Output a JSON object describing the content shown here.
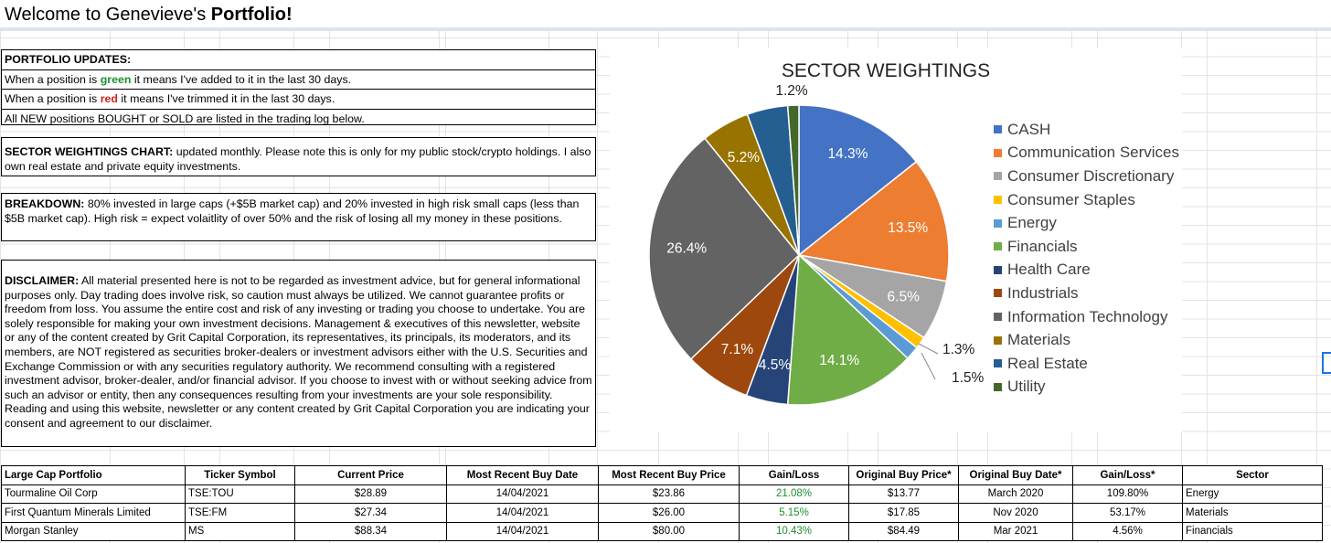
{
  "title_prefix": "Welcome to Genevieve's ",
  "title_bold": "Portfolio!",
  "updates": {
    "heading": "PORTFOLIO UPDATES:",
    "line1_a": "When a position is ",
    "line1_color": "green",
    "line1_b": " it means I've added to it in the last 30 days.",
    "line2_a": "When a position is ",
    "line2_color": "red",
    "line2_b": " it means I've trimmed it in the last 30 days.",
    "line3": "All NEW positions BOUGHT or SOLD are listed in the trading log below."
  },
  "sector_note": {
    "label": "SECTOR WEIGHTINGS CHART:",
    "text": " updated monthly. Please note this is only for my public stock/crypto holdings. I also own real estate and private equity investments."
  },
  "breakdown": {
    "label": "BREAKDOWN:",
    "text": " 80% invested in large caps (+$5B market cap) and 20% invested in high risk small caps (less than $5B market cap). High risk = expect volaitlity of over 50% and the risk of losing all my money in these positions."
  },
  "disclaimer": {
    "label": "DISCLAIMER:",
    "text": " All material presented here is not to be regarded as investment advice, but for general informational purposes only. Day trading does involve risk, so caution must always be utilized. We cannot guarantee profits or freedom from loss. You assume the entire cost and risk of any investing or trading you choose to undertake. You are solely responsible for making your own investment decisions. Management & executives of this newsletter, website or any of the content created by Grit Capital Corporation, its representatives, its principals, its moderators, and its members, are NOT registered as securities broker-dealers or investment advisors either with the U.S. Securities and Exchange Commission or with any securities regulatory authority. We recommend consulting with a registered investment advisor, broker-dealer, and/or financial advisor. If you choose to invest with or without seeking advice from such an advisor or entity, then any consequences resulting from your investments are your sole responsibility. Reading and using this website, newsletter or any content created by Grit Capital Corporation you are indicating your consent and agreement to our disclaimer."
  },
  "chart_data": {
    "type": "pie",
    "title": "SECTOR WEIGHTINGS",
    "categories": [
      "CASH",
      "Communication Services",
      "Consumer Discretionary",
      "Consumer Staples",
      "Energy",
      "Financials",
      "Health Care",
      "Industrials",
      "Information Technology",
      "Materials",
      "Real Estate",
      "Utility"
    ],
    "values": [
      14.3,
      13.5,
      6.5,
      1.3,
      1.5,
      14.1,
      4.5,
      7.1,
      26.4,
      5.2,
      4.4,
      1.2
    ],
    "labels": [
      "14.3%",
      "13.5%",
      "6.5%",
      "1.3%",
      "1.5%",
      "14.1%",
      "4.5%",
      "7.1%",
      "26.4%",
      "5.2%",
      "",
      "1.2%"
    ],
    "colors": [
      "#4472c4",
      "#ed7d31",
      "#a5a5a5",
      "#ffc000",
      "#5b9bd5",
      "#70ad47",
      "#264478",
      "#9e480e",
      "#636363",
      "#997300",
      "#255e91",
      "#43682b"
    ],
    "legend_position": "right"
  },
  "table": {
    "headers": [
      "Large Cap Portfolio",
      "Ticker Symbol",
      "Current Price",
      "Most Recent Buy Date",
      "Most Recent Buy Price",
      "Gain/Loss",
      "Original Buy Price*",
      "Original Buy Date*",
      "Gain/Loss*",
      "Sector"
    ],
    "rows": [
      [
        "Tourmaline Oil Corp",
        "TSE:TOU",
        "$28.89",
        "14/04/2021",
        "$23.86",
        "21.08%",
        "$13.77",
        "March 2020",
        "109.80%",
        "Energy"
      ],
      [
        "First Quantum Minerals Limited",
        "TSE:FM",
        "$27.34",
        "14/04/2021",
        "$26.00",
        "5.15%",
        "$17.85",
        "Nov 2020",
        "53.17%",
        "Materials"
      ],
      [
        "Morgan Stanley",
        "MS",
        "$88.34",
        "14/04/2021",
        "$80.00",
        "10.43%",
        "$84.49",
        "Mar 2021",
        "4.56%",
        "Financials"
      ]
    ]
  }
}
